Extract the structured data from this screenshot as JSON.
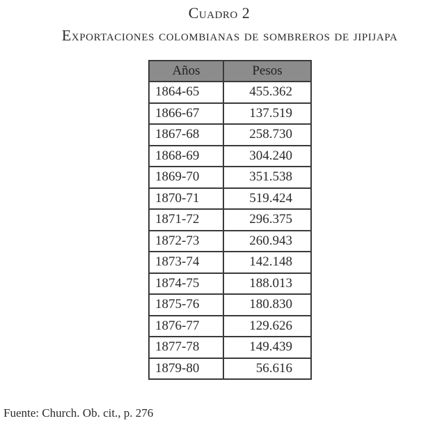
{
  "title": "Cuadro 2",
  "subtitle": "Exportaciones colombianas de sombreros de jipijapa",
  "table": {
    "headers": [
      "Años",
      "Pesos"
    ],
    "rows": [
      [
        "1864-65",
        "455.362"
      ],
      [
        "1866-67",
        "137.519"
      ],
      [
        "1867-68",
        "258.730"
      ],
      [
        "1868-69",
        "304.240"
      ],
      [
        "1869-70",
        "351.538"
      ],
      [
        "1870-71",
        "519.424"
      ],
      [
        "1871-72",
        "296.375"
      ],
      [
        "1872-73",
        "260.943"
      ],
      [
        "1873-74",
        "142.148"
      ],
      [
        "1874-75",
        "188.013"
      ],
      [
        "1875-76",
        "180.830"
      ],
      [
        "1876-77",
        "129.626"
      ],
      [
        "1877-78",
        "149.439"
      ],
      [
        "1879-80",
        "56.616"
      ]
    ]
  },
  "source": "Fuente: Church. Ob. cit., p. 276",
  "colors": {
    "header_bg": "#8c8c8c",
    "border": "#3a3a3a"
  }
}
